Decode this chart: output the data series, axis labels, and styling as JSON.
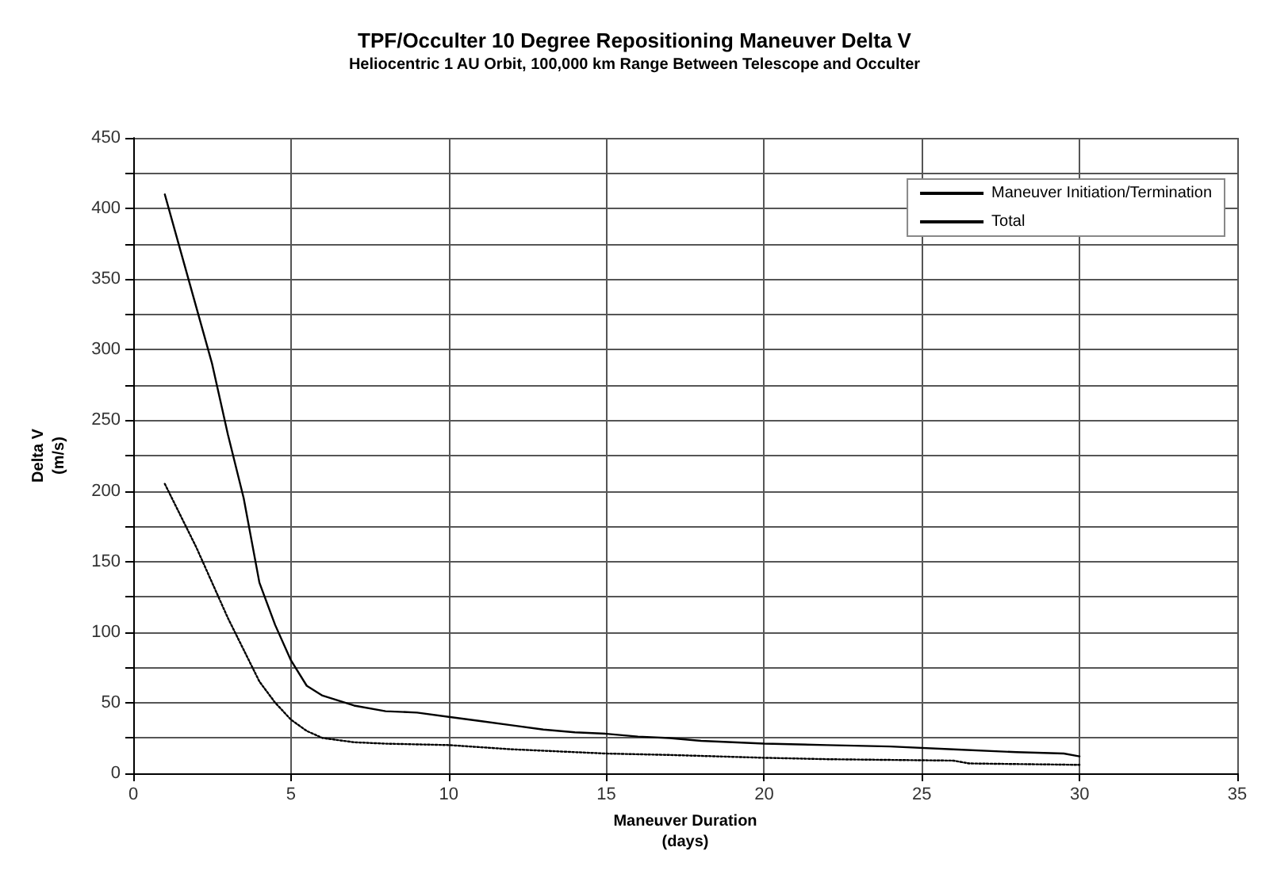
{
  "chart_data": {
    "type": "line",
    "title": "TPF/Occulter 10 Degree Repositioning Maneuver Delta V",
    "subtitle": "Heliocentric 1 AU Orbit, 100,000 km Range Between Telescope and Occulter",
    "xlabel": "Maneuver Duration\n(days)",
    "ylabel": "Delta V\n(m/s)",
    "series": [
      {
        "name": "Maneuver Initiation/Termination",
        "color": "#000000",
        "line_style": "dotted",
        "x": [
          1,
          2,
          3,
          4,
          4.5,
          5,
          5.5,
          6,
          7,
          8,
          10,
          12,
          15,
          17,
          20,
          22,
          26,
          26.5,
          30
        ],
        "values": [
          205,
          160,
          110,
          65,
          50,
          38,
          30,
          25,
          22,
          21,
          20,
          17,
          14,
          13,
          11,
          10,
          9,
          7,
          6
        ]
      },
      {
        "name": "Total",
        "color": "#000000",
        "line_style": "solid",
        "x": [
          1,
          1.5,
          2,
          2.5,
          3,
          3.5,
          4,
          4.5,
          5,
          5.5,
          6,
          7,
          8,
          9,
          10,
          11,
          12,
          13,
          14,
          15,
          16,
          17,
          18,
          19,
          20,
          22,
          24,
          26,
          28,
          29.5,
          30
        ],
        "values": [
          410,
          370,
          330,
          290,
          240,
          195,
          135,
          105,
          80,
          62,
          55,
          48,
          44,
          43,
          40,
          37,
          34,
          31,
          29,
          28,
          26,
          25,
          23,
          22,
          21,
          20,
          19,
          17,
          15,
          14,
          12
        ]
      }
    ],
    "xlim": [
      0,
      35
    ],
    "xticks": [
      0,
      5,
      10,
      15,
      20,
      25,
      30,
      35
    ],
    "ylim": [
      0,
      450
    ],
    "yticks": [
      0,
      {
        "value": 25,
        "label": null
      },
      50,
      {
        "value": 75,
        "label": null
      },
      100,
      {
        "value": 125,
        "label": null
      },
      150,
      {
        "value": 175,
        "label": null
      },
      200,
      {
        "value": 225,
        "label": null
      },
      250,
      {
        "value": 275,
        "label": null
      },
      300,
      {
        "value": 325,
        "label": null
      },
      350,
      {
        "value": 375,
        "label": null
      },
      400,
      {
        "value": 425,
        "label": null
      },
      450
    ],
    "grid": true,
    "legend": "top right",
    "marker": "none"
  }
}
